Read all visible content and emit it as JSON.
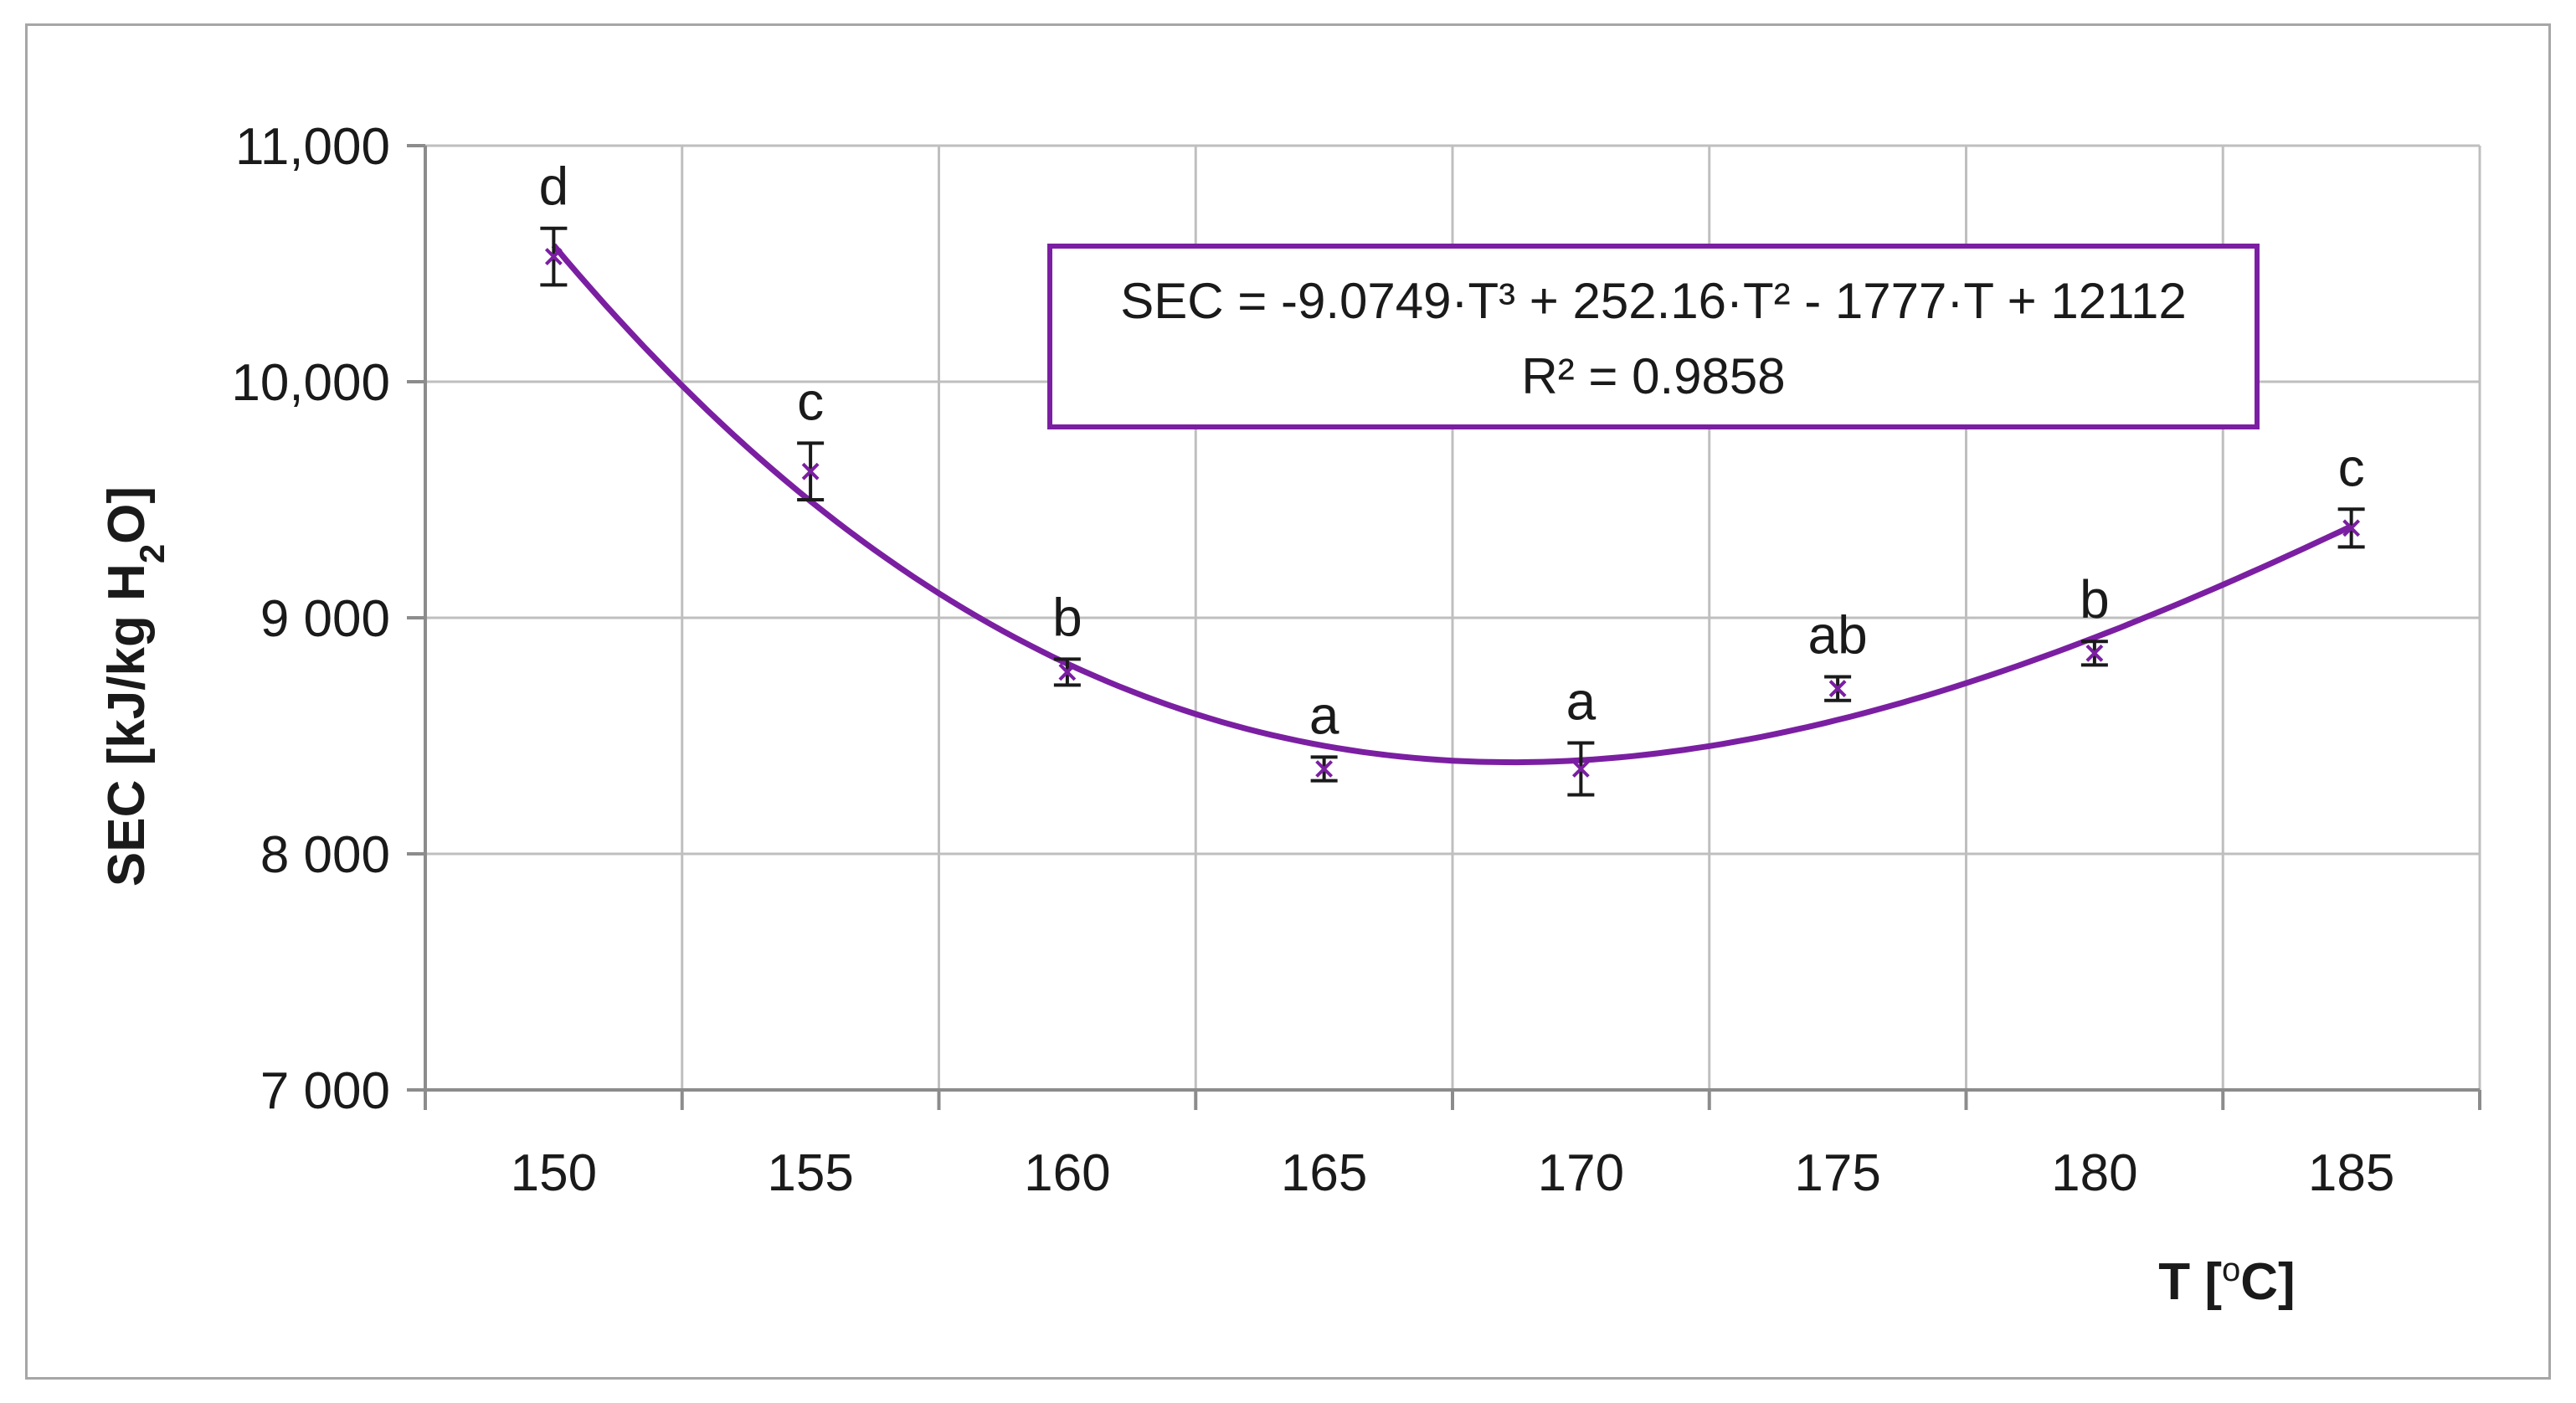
{
  "chart_data": {
    "type": "scatter",
    "xlabel_main": "T [",
    "xlabel_unit": "o",
    "xlabel_end": "C]",
    "ylabel_parts": [
      "SEC [kJ/kg H",
      "2",
      "O]"
    ],
    "x_ticks": [
      "150",
      "155",
      "160",
      "165",
      "170",
      "175",
      "180",
      "185"
    ],
    "y_ticks": [
      "7 000",
      "8 000",
      "9 000",
      "10,000",
      "11,000"
    ],
    "y_tick_values": [
      7000,
      8000,
      9000,
      10000,
      11000
    ],
    "xlim": [
      147.5,
      187.5
    ],
    "ylim": [
      7000,
      11000
    ],
    "grid": true,
    "series": [
      {
        "x": [
          150,
          155,
          160,
          165,
          170,
          175,
          180,
          185
        ],
        "y": [
          10530,
          9620,
          8770,
          8360,
          8360,
          8700,
          8850,
          9380
        ],
        "error": [
          120,
          120,
          55,
          50,
          110,
          50,
          50,
          80
        ],
        "labels": [
          "d",
          "c",
          "b",
          "a",
          "a",
          "ab",
          "b",
          "c"
        ]
      }
    ],
    "trendline": {
      "equation": "SEC = -9.0749·T³ + 252.16·T² - 1777·T + 12112",
      "r2": "R² = 0.9858",
      "coefficients": [
        -9.0749,
        252.16,
        -1777,
        12112
      ],
      "variable": "point index (1..8)"
    },
    "colors": {
      "series": "#7b1fa2",
      "trend": "#7b1fa2",
      "grid": "#bfbfbf",
      "errorbar": "#1a1a1a"
    }
  }
}
